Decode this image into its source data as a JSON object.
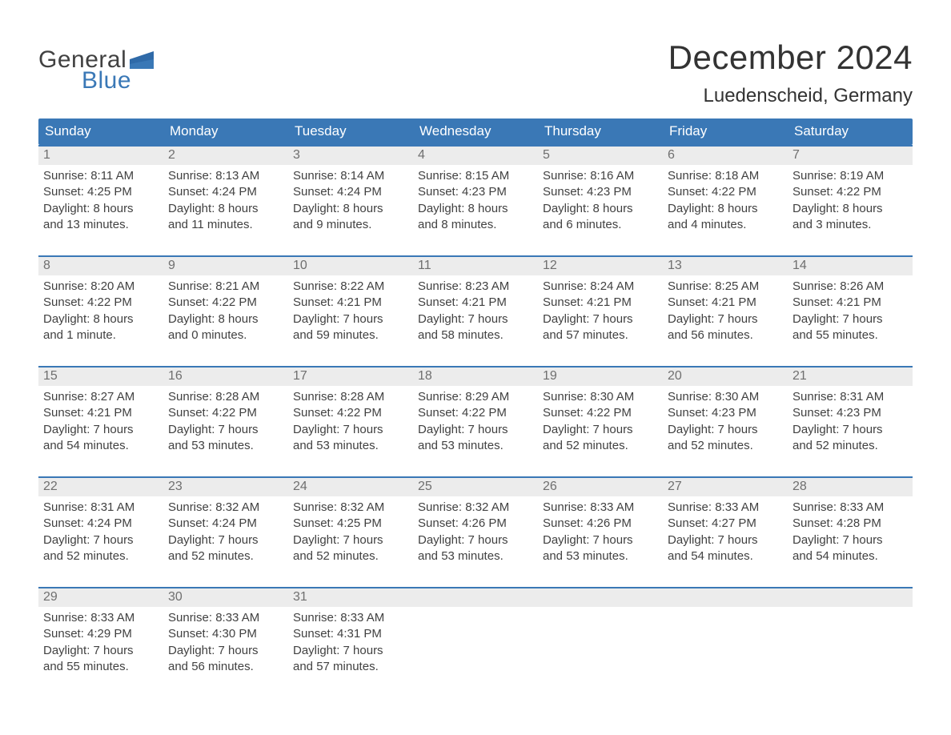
{
  "colors": {
    "header_bg": "#3a78b6",
    "header_text": "#ffffff",
    "daynum_bg": "#ececec",
    "daynum_text": "#6f6f6f",
    "body_text": "#414141",
    "border": "#3a78b6",
    "page_bg": "#ffffff",
    "logo_dark": "#414141",
    "logo_blue": "#3a78b6",
    "logo_flag": "#2f6aa8"
  },
  "typography": {
    "title_fontsize": 42,
    "location_fontsize": 24,
    "dow_fontsize": 17,
    "daynum_fontsize": 16,
    "body_fontsize": 15,
    "logo_fontsize": 30
  },
  "logo": {
    "line1": "General",
    "line2": "Blue"
  },
  "title": "December 2024",
  "location": "Luedenscheid, Germany",
  "days_of_week": [
    "Sunday",
    "Monday",
    "Tuesday",
    "Wednesday",
    "Thursday",
    "Friday",
    "Saturday"
  ],
  "weeks": [
    [
      {
        "n": "1",
        "sunrise": "Sunrise: 8:11 AM",
        "sunset": "Sunset: 4:25 PM",
        "day1": "Daylight: 8 hours",
        "day2": "and 13 minutes."
      },
      {
        "n": "2",
        "sunrise": "Sunrise: 8:13 AM",
        "sunset": "Sunset: 4:24 PM",
        "day1": "Daylight: 8 hours",
        "day2": "and 11 minutes."
      },
      {
        "n": "3",
        "sunrise": "Sunrise: 8:14 AM",
        "sunset": "Sunset: 4:24 PM",
        "day1": "Daylight: 8 hours",
        "day2": "and 9 minutes."
      },
      {
        "n": "4",
        "sunrise": "Sunrise: 8:15 AM",
        "sunset": "Sunset: 4:23 PM",
        "day1": "Daylight: 8 hours",
        "day2": "and 8 minutes."
      },
      {
        "n": "5",
        "sunrise": "Sunrise: 8:16 AM",
        "sunset": "Sunset: 4:23 PM",
        "day1": "Daylight: 8 hours",
        "day2": "and 6 minutes."
      },
      {
        "n": "6",
        "sunrise": "Sunrise: 8:18 AM",
        "sunset": "Sunset: 4:22 PM",
        "day1": "Daylight: 8 hours",
        "day2": "and 4 minutes."
      },
      {
        "n": "7",
        "sunrise": "Sunrise: 8:19 AM",
        "sunset": "Sunset: 4:22 PM",
        "day1": "Daylight: 8 hours",
        "day2": "and 3 minutes."
      }
    ],
    [
      {
        "n": "8",
        "sunrise": "Sunrise: 8:20 AM",
        "sunset": "Sunset: 4:22 PM",
        "day1": "Daylight: 8 hours",
        "day2": "and 1 minute."
      },
      {
        "n": "9",
        "sunrise": "Sunrise: 8:21 AM",
        "sunset": "Sunset: 4:22 PM",
        "day1": "Daylight: 8 hours",
        "day2": "and 0 minutes."
      },
      {
        "n": "10",
        "sunrise": "Sunrise: 8:22 AM",
        "sunset": "Sunset: 4:21 PM",
        "day1": "Daylight: 7 hours",
        "day2": "and 59 minutes."
      },
      {
        "n": "11",
        "sunrise": "Sunrise: 8:23 AM",
        "sunset": "Sunset: 4:21 PM",
        "day1": "Daylight: 7 hours",
        "day2": "and 58 minutes."
      },
      {
        "n": "12",
        "sunrise": "Sunrise: 8:24 AM",
        "sunset": "Sunset: 4:21 PM",
        "day1": "Daylight: 7 hours",
        "day2": "and 57 minutes."
      },
      {
        "n": "13",
        "sunrise": "Sunrise: 8:25 AM",
        "sunset": "Sunset: 4:21 PM",
        "day1": "Daylight: 7 hours",
        "day2": "and 56 minutes."
      },
      {
        "n": "14",
        "sunrise": "Sunrise: 8:26 AM",
        "sunset": "Sunset: 4:21 PM",
        "day1": "Daylight: 7 hours",
        "day2": "and 55 minutes."
      }
    ],
    [
      {
        "n": "15",
        "sunrise": "Sunrise: 8:27 AM",
        "sunset": "Sunset: 4:21 PM",
        "day1": "Daylight: 7 hours",
        "day2": "and 54 minutes."
      },
      {
        "n": "16",
        "sunrise": "Sunrise: 8:28 AM",
        "sunset": "Sunset: 4:22 PM",
        "day1": "Daylight: 7 hours",
        "day2": "and 53 minutes."
      },
      {
        "n": "17",
        "sunrise": "Sunrise: 8:28 AM",
        "sunset": "Sunset: 4:22 PM",
        "day1": "Daylight: 7 hours",
        "day2": "and 53 minutes."
      },
      {
        "n": "18",
        "sunrise": "Sunrise: 8:29 AM",
        "sunset": "Sunset: 4:22 PM",
        "day1": "Daylight: 7 hours",
        "day2": "and 53 minutes."
      },
      {
        "n": "19",
        "sunrise": "Sunrise: 8:30 AM",
        "sunset": "Sunset: 4:22 PM",
        "day1": "Daylight: 7 hours",
        "day2": "and 52 minutes."
      },
      {
        "n": "20",
        "sunrise": "Sunrise: 8:30 AM",
        "sunset": "Sunset: 4:23 PM",
        "day1": "Daylight: 7 hours",
        "day2": "and 52 minutes."
      },
      {
        "n": "21",
        "sunrise": "Sunrise: 8:31 AM",
        "sunset": "Sunset: 4:23 PM",
        "day1": "Daylight: 7 hours",
        "day2": "and 52 minutes."
      }
    ],
    [
      {
        "n": "22",
        "sunrise": "Sunrise: 8:31 AM",
        "sunset": "Sunset: 4:24 PM",
        "day1": "Daylight: 7 hours",
        "day2": "and 52 minutes."
      },
      {
        "n": "23",
        "sunrise": "Sunrise: 8:32 AM",
        "sunset": "Sunset: 4:24 PM",
        "day1": "Daylight: 7 hours",
        "day2": "and 52 minutes."
      },
      {
        "n": "24",
        "sunrise": "Sunrise: 8:32 AM",
        "sunset": "Sunset: 4:25 PM",
        "day1": "Daylight: 7 hours",
        "day2": "and 52 minutes."
      },
      {
        "n": "25",
        "sunrise": "Sunrise: 8:32 AM",
        "sunset": "Sunset: 4:26 PM",
        "day1": "Daylight: 7 hours",
        "day2": "and 53 minutes."
      },
      {
        "n": "26",
        "sunrise": "Sunrise: 8:33 AM",
        "sunset": "Sunset: 4:26 PM",
        "day1": "Daylight: 7 hours",
        "day2": "and 53 minutes."
      },
      {
        "n": "27",
        "sunrise": "Sunrise: 8:33 AM",
        "sunset": "Sunset: 4:27 PM",
        "day1": "Daylight: 7 hours",
        "day2": "and 54 minutes."
      },
      {
        "n": "28",
        "sunrise": "Sunrise: 8:33 AM",
        "sunset": "Sunset: 4:28 PM",
        "day1": "Daylight: 7 hours",
        "day2": "and 54 minutes."
      }
    ],
    [
      {
        "n": "29",
        "sunrise": "Sunrise: 8:33 AM",
        "sunset": "Sunset: 4:29 PM",
        "day1": "Daylight: 7 hours",
        "day2": "and 55 minutes."
      },
      {
        "n": "30",
        "sunrise": "Sunrise: 8:33 AM",
        "sunset": "Sunset: 4:30 PM",
        "day1": "Daylight: 7 hours",
        "day2": "and 56 minutes."
      },
      {
        "n": "31",
        "sunrise": "Sunrise: 8:33 AM",
        "sunset": "Sunset: 4:31 PM",
        "day1": "Daylight: 7 hours",
        "day2": "and 57 minutes."
      },
      null,
      null,
      null,
      null
    ]
  ]
}
